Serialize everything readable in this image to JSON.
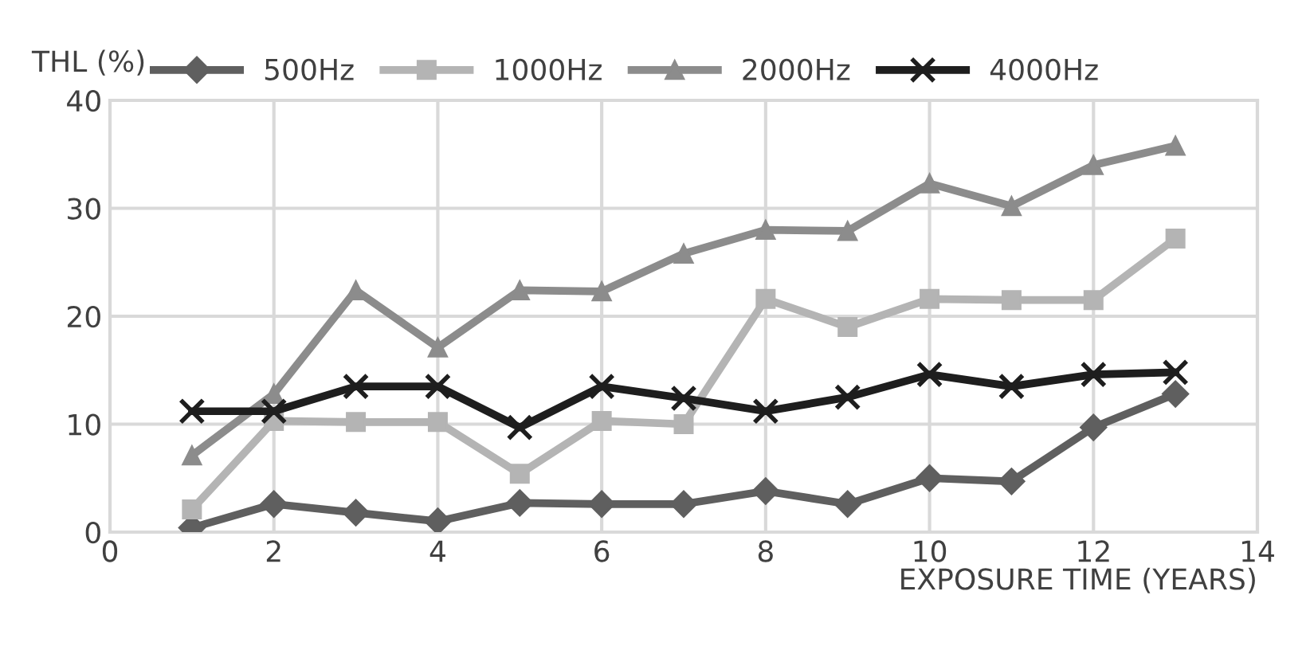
{
  "chart_data": {
    "type": "line",
    "ylabel": "THL (%)",
    "xlabel": "EXPOSURE TIME (YEARS)",
    "x": [
      1,
      2,
      3,
      4,
      5,
      6,
      7,
      8,
      9,
      10,
      11,
      12,
      13
    ],
    "xlim": [
      0,
      14
    ],
    "xticks": [
      0,
      2,
      4,
      6,
      8,
      10,
      12,
      14
    ],
    "ylim": [
      0,
      40
    ],
    "yticks": [
      0,
      10,
      20,
      30,
      40
    ],
    "grid": true,
    "legend": "top",
    "line_style": "solid",
    "series": [
      {
        "name": "500Hz",
        "color": "#5f5f5f",
        "marker": "diamond",
        "values": [
          0.4,
          2.6,
          1.8,
          1.0,
          2.7,
          2.6,
          2.6,
          3.8,
          2.6,
          5.0,
          4.7,
          9.7,
          12.8
        ]
      },
      {
        "name": "1000Hz",
        "color": "#b4b4b4",
        "marker": "square",
        "values": [
          2.1,
          10.3,
          10.2,
          10.2,
          5.4,
          10.3,
          10.0,
          21.6,
          19.0,
          21.6,
          21.5,
          21.5,
          27.2
        ]
      },
      {
        "name": "2000Hz",
        "color": "#8c8c8c",
        "marker": "triangle",
        "values": [
          7.1,
          12.8,
          22.4,
          17.1,
          22.4,
          22.3,
          25.8,
          28.0,
          27.9,
          32.3,
          30.2,
          34.0,
          35.8
        ]
      },
      {
        "name": "4000Hz",
        "color": "#1e1e1e",
        "marker": "cross",
        "values": [
          11.2,
          11.2,
          13.5,
          13.5,
          9.7,
          13.5,
          12.4,
          11.2,
          12.5,
          14.6,
          13.5,
          14.6,
          14.8
        ]
      }
    ]
  }
}
